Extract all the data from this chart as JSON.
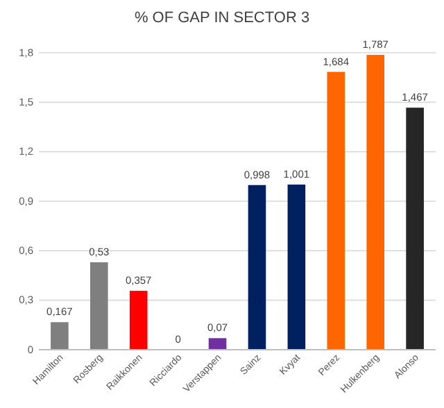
{
  "chart_data": {
    "type": "bar",
    "title": "% OF GAP IN SECTOR 3",
    "categories": [
      "Hamilton",
      "Rosberg",
      "Raikkonen",
      "Ricciardo",
      "Verstappen",
      "Sainz",
      "Kvyat",
      "Perez",
      "Hulkenberg",
      "Alonso"
    ],
    "values": [
      0.167,
      0.53,
      0.357,
      0,
      0.07,
      0.998,
      1.001,
      1.684,
      1.787,
      1.467
    ],
    "value_labels": [
      "0,167",
      "0,53",
      "0,357",
      "0",
      "0,07",
      "0,998",
      "1,001",
      "1,684",
      "1,787",
      "1,467"
    ],
    "colors": [
      "#7f7f7f",
      "#7f7f7f",
      "#ff0000",
      "#7f7f7f",
      "#7030a0",
      "#002060",
      "#002060",
      "#ff6600",
      "#ff6600",
      "#262626"
    ],
    "ylim": [
      0,
      1.8
    ],
    "yticks": [
      0,
      {
        "value": 0.3,
        "label": "0,3"
      },
      {
        "value": 0.6,
        "label": "0,6"
      },
      {
        "value": 0.9,
        "label": "0,9"
      },
      {
        "value": 1.2,
        "label": "1,2"
      },
      {
        "value": 1.5,
        "label": "1,5"
      },
      {
        "value": 1.8,
        "label": "1,8"
      }
    ],
    "grid": "y"
  }
}
